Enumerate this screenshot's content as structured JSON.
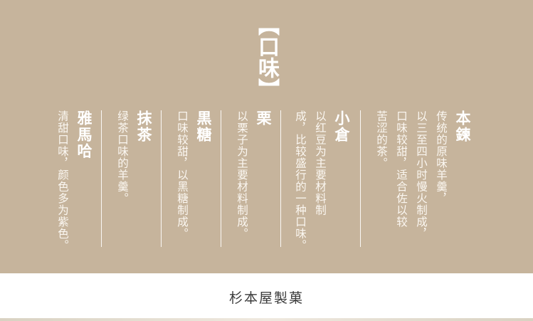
{
  "heading": "【口味】",
  "entries": [
    {
      "name": "本鍊",
      "desc": [
        "传统的原味羊羹，",
        "以三至四小时慢火制成，",
        "口味较甜，适合佐以较",
        "苦涩的茶。"
      ]
    },
    {
      "name": "小倉",
      "desc": [
        "以红豆为主要材料制",
        "成，比较盛行的一种口味。"
      ]
    },
    {
      "name": "栗",
      "desc": [
        "以栗子为主要材料制成。"
      ]
    },
    {
      "name": "黒糖",
      "desc": [
        "口味较甜，以黑糖制成。"
      ]
    },
    {
      "name": "抹茶",
      "desc": [
        "绿茶口味的羊羹。"
      ]
    },
    {
      "name": "雅馬哈",
      "desc": [
        "清甜口味，颜色多为紫色。"
      ]
    }
  ],
  "footer": {
    "brand": "杉本屋製菓"
  },
  "colors": {
    "panel": "#c6b49c",
    "text": "#ffffff",
    "footer_text": "#3a3a3a"
  }
}
